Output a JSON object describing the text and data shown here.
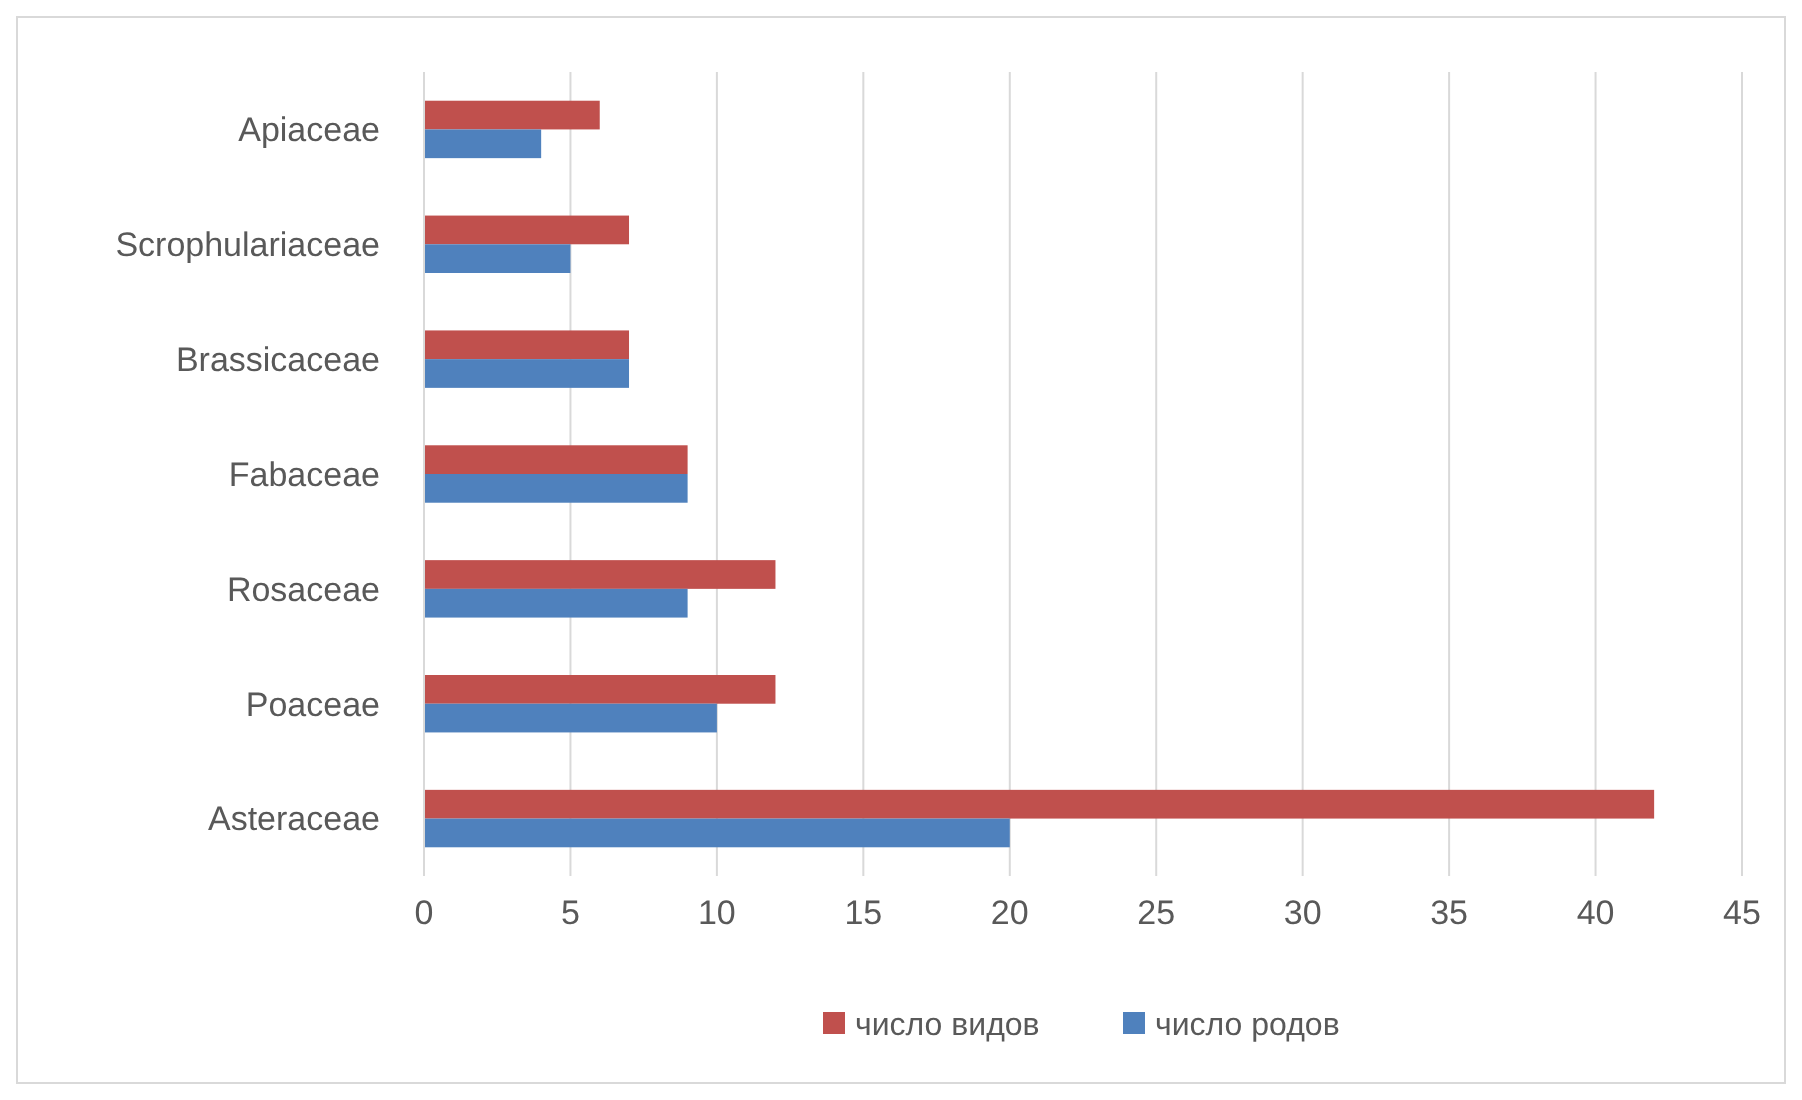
{
  "chart_data": {
    "type": "bar",
    "orientation": "horizontal",
    "categories": [
      "Apiaceae",
      "Scrophulariaceae",
      "Brassicaceae",
      "Fabaceae",
      "Rosaceae",
      "Poaceae",
      "Asteraceae"
    ],
    "series": [
      {
        "name": "число видов",
        "color": "#c0504d",
        "values": [
          6,
          7,
          7,
          9,
          12,
          12,
          42
        ]
      },
      {
        "name": "число родов",
        "color": "#4f81bd",
        "values": [
          4,
          5,
          7,
          9,
          9,
          10,
          20
        ]
      }
    ],
    "xlim": [
      0,
      45
    ],
    "xticks": [
      0,
      5,
      10,
      15,
      20,
      25,
      30,
      35,
      40,
      45
    ],
    "grid": "x",
    "legend": "bottom"
  }
}
